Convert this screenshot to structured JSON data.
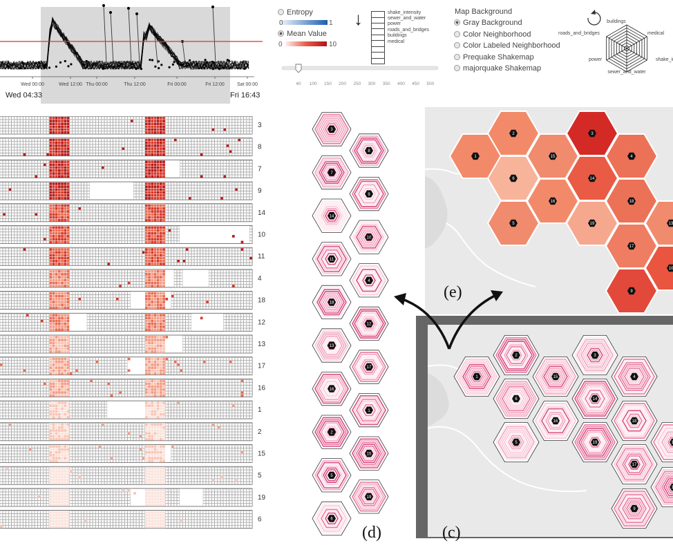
{
  "timeline": {
    "ticks": [
      "Wed 00:00",
      "Wed 12:00",
      "Thu 00:00",
      "Thu 12:00",
      "Fri 00:00",
      "Fri 12:00",
      "Sat 00:00"
    ],
    "start_label": "Wed 04:33",
    "end_label": "Fri 16:43"
  },
  "measure": {
    "entropy_label": "Entropy",
    "entropy_min": "0",
    "entropy_max": "1",
    "mean_label": "Mean Value",
    "mean_min": "0",
    "mean_max": "10",
    "selected": "Mean Value"
  },
  "sort_arrow": "↓",
  "attributes": [
    "shake_intensity",
    "sewer_and_water",
    "power",
    "roads_and_bridges",
    "buildings",
    "medical"
  ],
  "slider": {
    "ticks": [
      "40",
      "100",
      "150",
      "200",
      "250",
      "300",
      "350",
      "400",
      "450",
      "500"
    ],
    "value": 40
  },
  "map_background": {
    "title": "Map Background",
    "options": [
      "Gray Background",
      "Color Neighborhood",
      "Color Labeled Neighborhood",
      "Prequake Shakemap",
      "majorquake Shakemap"
    ],
    "selected": "Gray Background"
  },
  "radar_legend": {
    "labels": [
      "buildings",
      "medical",
      "shake_inte",
      "sewer_and_water",
      "power",
      "roads_and_bridges"
    ]
  },
  "heatmap_rows": [
    "3",
    "8",
    "7",
    "9",
    "14",
    "10",
    "11",
    "4",
    "18",
    "12",
    "13",
    "17",
    "16",
    "1",
    "2",
    "15",
    "5",
    "19",
    "6"
  ],
  "hex_column_ids": [
    [
      "3",
      "7",
      "14",
      "11",
      "18",
      "13",
      "16",
      "2",
      "5",
      "6"
    ],
    [
      "8",
      "9",
      "10",
      "4",
      "12",
      "17",
      "1",
      "15",
      "19"
    ]
  ],
  "map_hex_ids": [
    "1",
    "2",
    "15",
    "6",
    "16",
    "5",
    "3",
    "14",
    "19",
    "18",
    "4",
    "13",
    "17",
    "10",
    "9"
  ],
  "panel_labels": {
    "c": "(c)",
    "d": "(d)",
    "e": "(e)"
  }
}
